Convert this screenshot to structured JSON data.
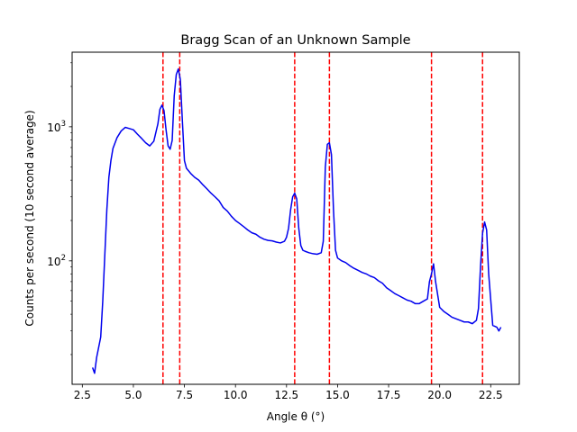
{
  "chart_data": {
    "type": "line",
    "title": "Bragg Scan of an Unknown Sample",
    "xlabel": "Angle θ (°)",
    "ylabel": "Counts per second (10 second average)",
    "xlim": [
      2.0,
      23.9
    ],
    "ylim": [
      12,
      3600
    ],
    "y_scale": "log",
    "grid": false,
    "x_ticks": [
      2.5,
      5.0,
      7.5,
      10.0,
      12.5,
      15.0,
      17.5,
      20.0,
      22.5
    ],
    "x_tick_labels": [
      "2.5",
      "5.0",
      "7.5",
      "10.0",
      "12.5",
      "15.0",
      "17.5",
      "20.0",
      "22.5"
    ],
    "y_major_ticks": [
      100,
      1000
    ],
    "y_major_tick_labels": [
      {
        "base": "10",
        "exp": "2"
      },
      {
        "base": "10",
        "exp": "3"
      }
    ],
    "series": [
      {
        "color": "#0000ee",
        "x": [
          3.0,
          3.1,
          3.2,
          3.4,
          3.5,
          3.6,
          3.7,
          3.8,
          3.9,
          4.0,
          4.2,
          4.4,
          4.6,
          4.8,
          5.0,
          5.2,
          5.4,
          5.6,
          5.8,
          6.0,
          6.2,
          6.3,
          6.4,
          6.5,
          6.6,
          6.7,
          6.8,
          6.9,
          7.0,
          7.1,
          7.2,
          7.3,
          7.4,
          7.5,
          7.6,
          7.7,
          7.8,
          8.0,
          8.2,
          8.4,
          8.6,
          8.8,
          9.0,
          9.2,
          9.4,
          9.6,
          9.8,
          10.0,
          10.2,
          10.4,
          10.6,
          10.8,
          11.0,
          11.2,
          11.4,
          11.6,
          11.8,
          12.0,
          12.2,
          12.4,
          12.5,
          12.6,
          12.7,
          12.8,
          12.9,
          13.0,
          13.1,
          13.2,
          13.3,
          13.4,
          13.6,
          13.8,
          14.0,
          14.2,
          14.3,
          14.4,
          14.5,
          14.6,
          14.7,
          14.8,
          14.9,
          15.0,
          15.2,
          15.4,
          15.6,
          15.8,
          16.0,
          16.2,
          16.4,
          16.6,
          16.8,
          17.0,
          17.2,
          17.4,
          17.6,
          17.8,
          18.0,
          18.2,
          18.4,
          18.6,
          18.8,
          19.0,
          19.2,
          19.4,
          19.5,
          19.6,
          19.7,
          19.8,
          20.0,
          20.2,
          20.4,
          20.6,
          20.8,
          21.0,
          21.2,
          21.4,
          21.6,
          21.8,
          21.9,
          22.0,
          22.1,
          22.2,
          22.3,
          22.4,
          22.6,
          22.8,
          22.9,
          23.0
        ],
        "y": [
          16,
          14.5,
          19,
          27,
          50,
          110,
          240,
          420,
          560,
          690,
          830,
          930,
          990,
          970,
          950,
          880,
          820,
          760,
          720,
          780,
          1050,
          1350,
          1450,
          1320,
          950,
          720,
          680,
          790,
          1700,
          2450,
          2700,
          2250,
          1100,
          560,
          490,
          470,
          450,
          420,
          400,
          370,
          345,
          320,
          300,
          280,
          250,
          235,
          215,
          200,
          190,
          180,
          170,
          162,
          158,
          150,
          145,
          142,
          141,
          138,
          136,
          140,
          150,
          175,
          240,
          300,
          320,
          290,
          175,
          130,
          120,
          118,
          115,
          113,
          112,
          115,
          140,
          500,
          740,
          760,
          620,
          240,
          120,
          105,
          100,
          97,
          92,
          88,
          85,
          82,
          80,
          77,
          75,
          71,
          68,
          63,
          60,
          57,
          55,
          53,
          51,
          50,
          48,
          48,
          50,
          52,
          70,
          80,
          95,
          70,
          45,
          42,
          40,
          38,
          37,
          36,
          35,
          35,
          34,
          36,
          44,
          90,
          160,
          195,
          170,
          80,
          33,
          32,
          30,
          32
        ]
      }
    ],
    "vlines": {
      "color": "#ff0000",
      "style": "dashed",
      "x": [
        6.45,
        7.27,
        12.9,
        14.6,
        19.6,
        22.1
      ]
    }
  }
}
